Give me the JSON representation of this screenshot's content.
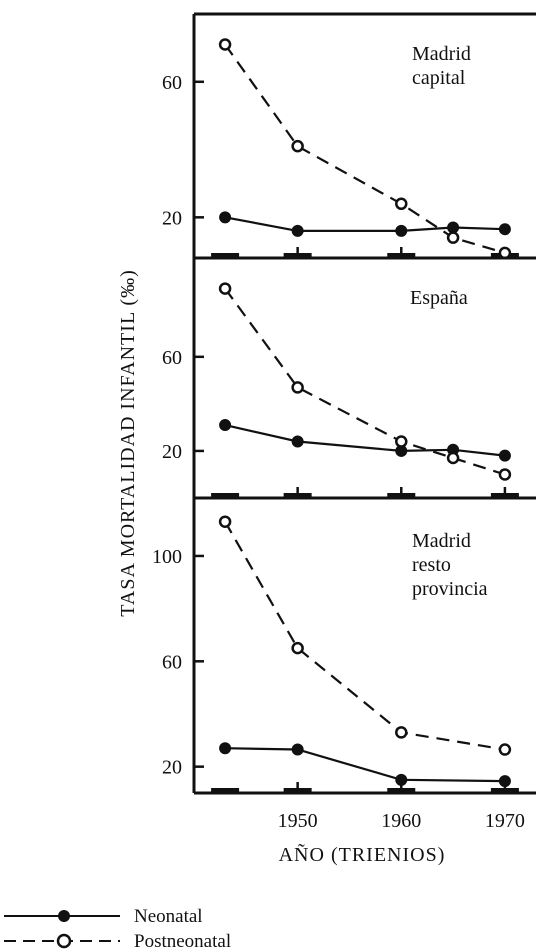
{
  "chart_data": {
    "type": "line",
    "ylabel": "TASA MORTALIDAD INFANTIL (‰)",
    "xlabel": "AÑO (TRIENIOS)",
    "x_ticks": [
      1950,
      1960,
      1970
    ],
    "xlim": [
      1940,
      1973
    ],
    "legend": {
      "placement": "bottom-left",
      "entries": [
        {
          "name": "Neonatal",
          "style": "solid-filled"
        },
        {
          "name": "Postneonatal",
          "style": "dashed-open"
        }
      ]
    },
    "panels": [
      {
        "title_lines": [
          "Madrid",
          "capital"
        ],
        "ylim": [
          8,
          80
        ],
        "yticks": [
          20,
          60
        ],
        "series": [
          {
            "name": "Neonatal",
            "x": [
              1943,
              1950,
              1960,
              1965,
              1970
            ],
            "y": [
              20,
              16,
              16,
              17,
              16.5
            ]
          },
          {
            "name": "Postneonatal",
            "x": [
              1943,
              1950,
              1960,
              1965,
              1970
            ],
            "y": [
              71,
              41,
              24,
              14,
              9.5
            ]
          }
        ]
      },
      {
        "title_lines": [
          "España"
        ],
        "ylim": [
          0,
          102
        ],
        "yticks": [
          20,
          60
        ],
        "series": [
          {
            "name": "Neonatal",
            "x": [
              1943,
              1950,
              1960,
              1965,
              1970
            ],
            "y": [
              31,
              24,
              20,
              20.5,
              18
            ]
          },
          {
            "name": "Postneonatal",
            "x": [
              1943,
              1950,
              1960,
              1965,
              1970
            ],
            "y": [
              89,
              47,
              24,
              17,
              10
            ]
          }
        ]
      },
      {
        "title_lines": [
          "Madrid",
          "resto",
          "provincia"
        ],
        "ylim": [
          10,
          122
        ],
        "yticks": [
          20,
          60,
          100
        ],
        "series": [
          {
            "name": "Neonatal",
            "x": [
              1943,
              1950,
              1960,
              1970
            ],
            "y": [
              27,
              26.5,
              15,
              14.5
            ]
          },
          {
            "name": "Postneonatal",
            "x": [
              1943,
              1950,
              1960,
              1970
            ],
            "y": [
              113,
              65,
              33,
              26.5
            ]
          }
        ]
      }
    ]
  }
}
